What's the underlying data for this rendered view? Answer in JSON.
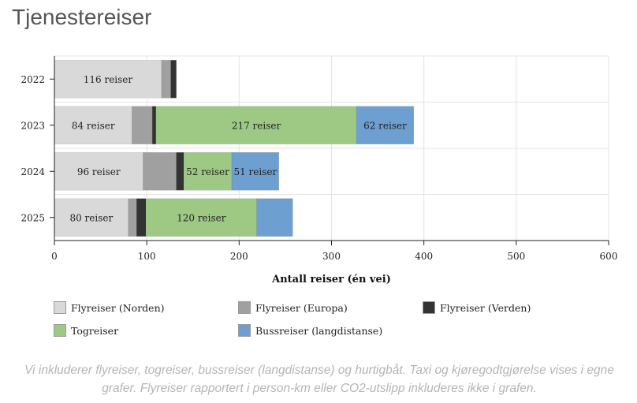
{
  "page": {
    "title": "Tjenestereiser",
    "note": "Vi inkluderer flyreiser, togreiser, bussreiser (langdistanse) og hurtigbåt. Taxi og kjøregodtgjørelse vises i egne grafer. Flyreiser rapportert i person-km eller CO2-utslipp inkluderes ikke i grafen."
  },
  "chart_data": {
    "type": "bar",
    "orientation": "horizontal",
    "stacked": true,
    "categories": [
      "2022",
      "2023",
      "2024",
      "2025"
    ],
    "xlabel": "Antall reiser (én vei)",
    "xlim": [
      0,
      600
    ],
    "xticks": [
      0,
      100,
      200,
      300,
      400,
      500,
      600
    ],
    "grid": true,
    "legend_position": "bottom",
    "series": [
      {
        "name": "Flyreiser (Norden)",
        "color": "#d9d9d9",
        "values": [
          116,
          84,
          96,
          80
        ],
        "labels": [
          "116 reiser",
          "84 reiser",
          "96 reiser",
          "80 reiser"
        ]
      },
      {
        "name": "Flyreiser (Europa)",
        "color": "#a0a0a0",
        "values": [
          10,
          22,
          36,
          9
        ],
        "labels": [
          "",
          "",
          "",
          ""
        ]
      },
      {
        "name": "Flyreiser (Verden)",
        "color": "#333333",
        "values": [
          6,
          4,
          8,
          10
        ],
        "labels": [
          "",
          "",
          "",
          ""
        ]
      },
      {
        "name": "Togreiser",
        "color": "#9dc985",
        "values": [
          0,
          217,
          52,
          120
        ],
        "labels": [
          "",
          "217 reiser",
          "52 reiser",
          "120 reiser"
        ]
      },
      {
        "name": "Bussreiser (langdistanse)",
        "color": "#6e9fd1",
        "values": [
          0,
          62,
          51,
          39
        ],
        "labels": [
          "",
          "62 reiser",
          "51 reiser",
          ""
        ]
      }
    ]
  }
}
